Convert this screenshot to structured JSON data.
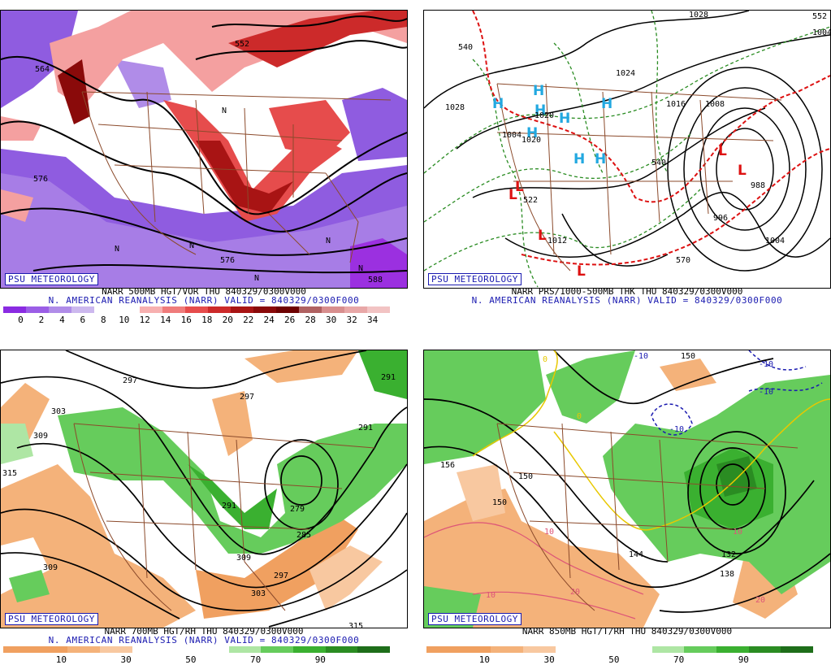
{
  "panels": {
    "p1": {
      "label": "PSU METEOROLOGY",
      "caption1": "NARR 500MB HGT/VOR THU 840329/0300V000",
      "caption2": "N. AMERICAN REANALYSIS (NARR) VALID = 840329/0300F000",
      "contour_labels": [
        "552",
        "564",
        "576",
        "576",
        "588",
        "N",
        "N",
        "N",
        "N",
        "N",
        "N"
      ],
      "colorbar": {
        "colors": [
          "#8a2be2",
          "#9b5ee6",
          "#b08ce8",
          "#ccb8ee",
          "#ffffff",
          "#ffffff",
          "#f7b0b0",
          "#ef7c7c",
          "#e64c4c",
          "#cc2a2a",
          "#a81414",
          "#8a0a0a",
          "#6e0202",
          "#b06262",
          "#d88e8e",
          "#e8a7a7",
          "#f2c3c3"
        ],
        "ticks": [
          "0",
          "2",
          "4",
          "6",
          "8",
          "10",
          "12",
          "14",
          "16",
          "18",
          "20",
          "22",
          "24",
          "26",
          "28",
          "30",
          "32",
          "34"
        ]
      }
    },
    "p2": {
      "label": "PSU METEOROLOGY",
      "caption1": "NARR PRS/1000-500MB THK THU 840329/0300V000",
      "caption2": "N. AMERICAN REANALYSIS (NARR) VALID = 840329/0300F000",
      "contour_labels": [
        "1028",
        "1028",
        "1024",
        "1020",
        "1020",
        "1008",
        "1016",
        "1004",
        "996",
        "988",
        "1004",
        "540",
        "540",
        "570",
        "522",
        "552",
        "1012",
        "1004"
      ],
      "highs": [
        "H",
        "H",
        "H",
        "H",
        "H",
        "H",
        "H",
        "H"
      ],
      "lows": [
        "L",
        "L",
        "L",
        "L",
        "L",
        "L"
      ]
    },
    "p3": {
      "label": "PSU METEOROLOGY",
      "caption1": "NARR 700MB HGT/RH THU 840329/0300V000",
      "caption2": "N. AMERICAN REANALYSIS (NARR) VALID = 840329/0300F000",
      "contour_labels": [
        "297",
        "303",
        "309",
        "315",
        "297",
        "291",
        "291",
        "279",
        "285",
        "297",
        "303",
        "309",
        "309",
        "315",
        "291"
      ],
      "colorbar": {
        "colors": [
          "#f0a060",
          "#f0a060",
          "#f4b27a",
          "#f8c8a0",
          "#ffffff",
          "#ffffff",
          "#ffffff",
          "#aee6a4",
          "#66cc5c",
          "#3ab030",
          "#2a8c22",
          "#1e6e1a"
        ],
        "ticks": [
          "10",
          "30",
          "50",
          "70",
          "90"
        ]
      }
    },
    "p4": {
      "label": "PSU METEOROLOGY",
      "caption1": "NARR 850MB HGT/T/RH THU 840329/0300V000",
      "contour_labels": [
        "150",
        "156",
        "150",
        "150",
        "144",
        "138",
        "132",
        "-10",
        "-10",
        "-10",
        "-10",
        "10",
        "10",
        "20",
        "10",
        "20",
        "0",
        "0"
      ],
      "colorbar": {
        "colors": [
          "#f0a060",
          "#f0a060",
          "#f4b27a",
          "#f8c8a0",
          "#ffffff",
          "#ffffff",
          "#ffffff",
          "#aee6a4",
          "#66cc5c",
          "#3ab030",
          "#2a8c22",
          "#1e6e1a"
        ],
        "ticks": [
          "10",
          "30",
          "50",
          "70",
          "90"
        ]
      }
    }
  }
}
